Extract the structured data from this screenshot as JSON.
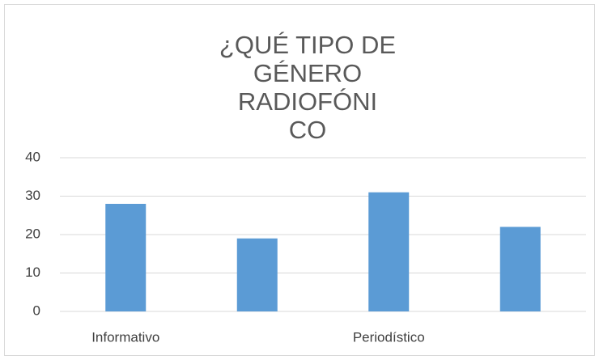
{
  "chart_data": {
    "type": "bar",
    "title_lines": [
      "¿QUÉ TIPO DE",
      "GÉNERO",
      "RADIOFÓNI",
      "CO"
    ],
    "categories": [
      "Informativo",
      null,
      "Periodístico",
      null
    ],
    "values": [
      28,
      19,
      31,
      22
    ],
    "color": "#5b9bd5",
    "ylim": [
      0,
      40
    ],
    "yticks": [
      0,
      10,
      20,
      30,
      40
    ],
    "grid": true
  }
}
